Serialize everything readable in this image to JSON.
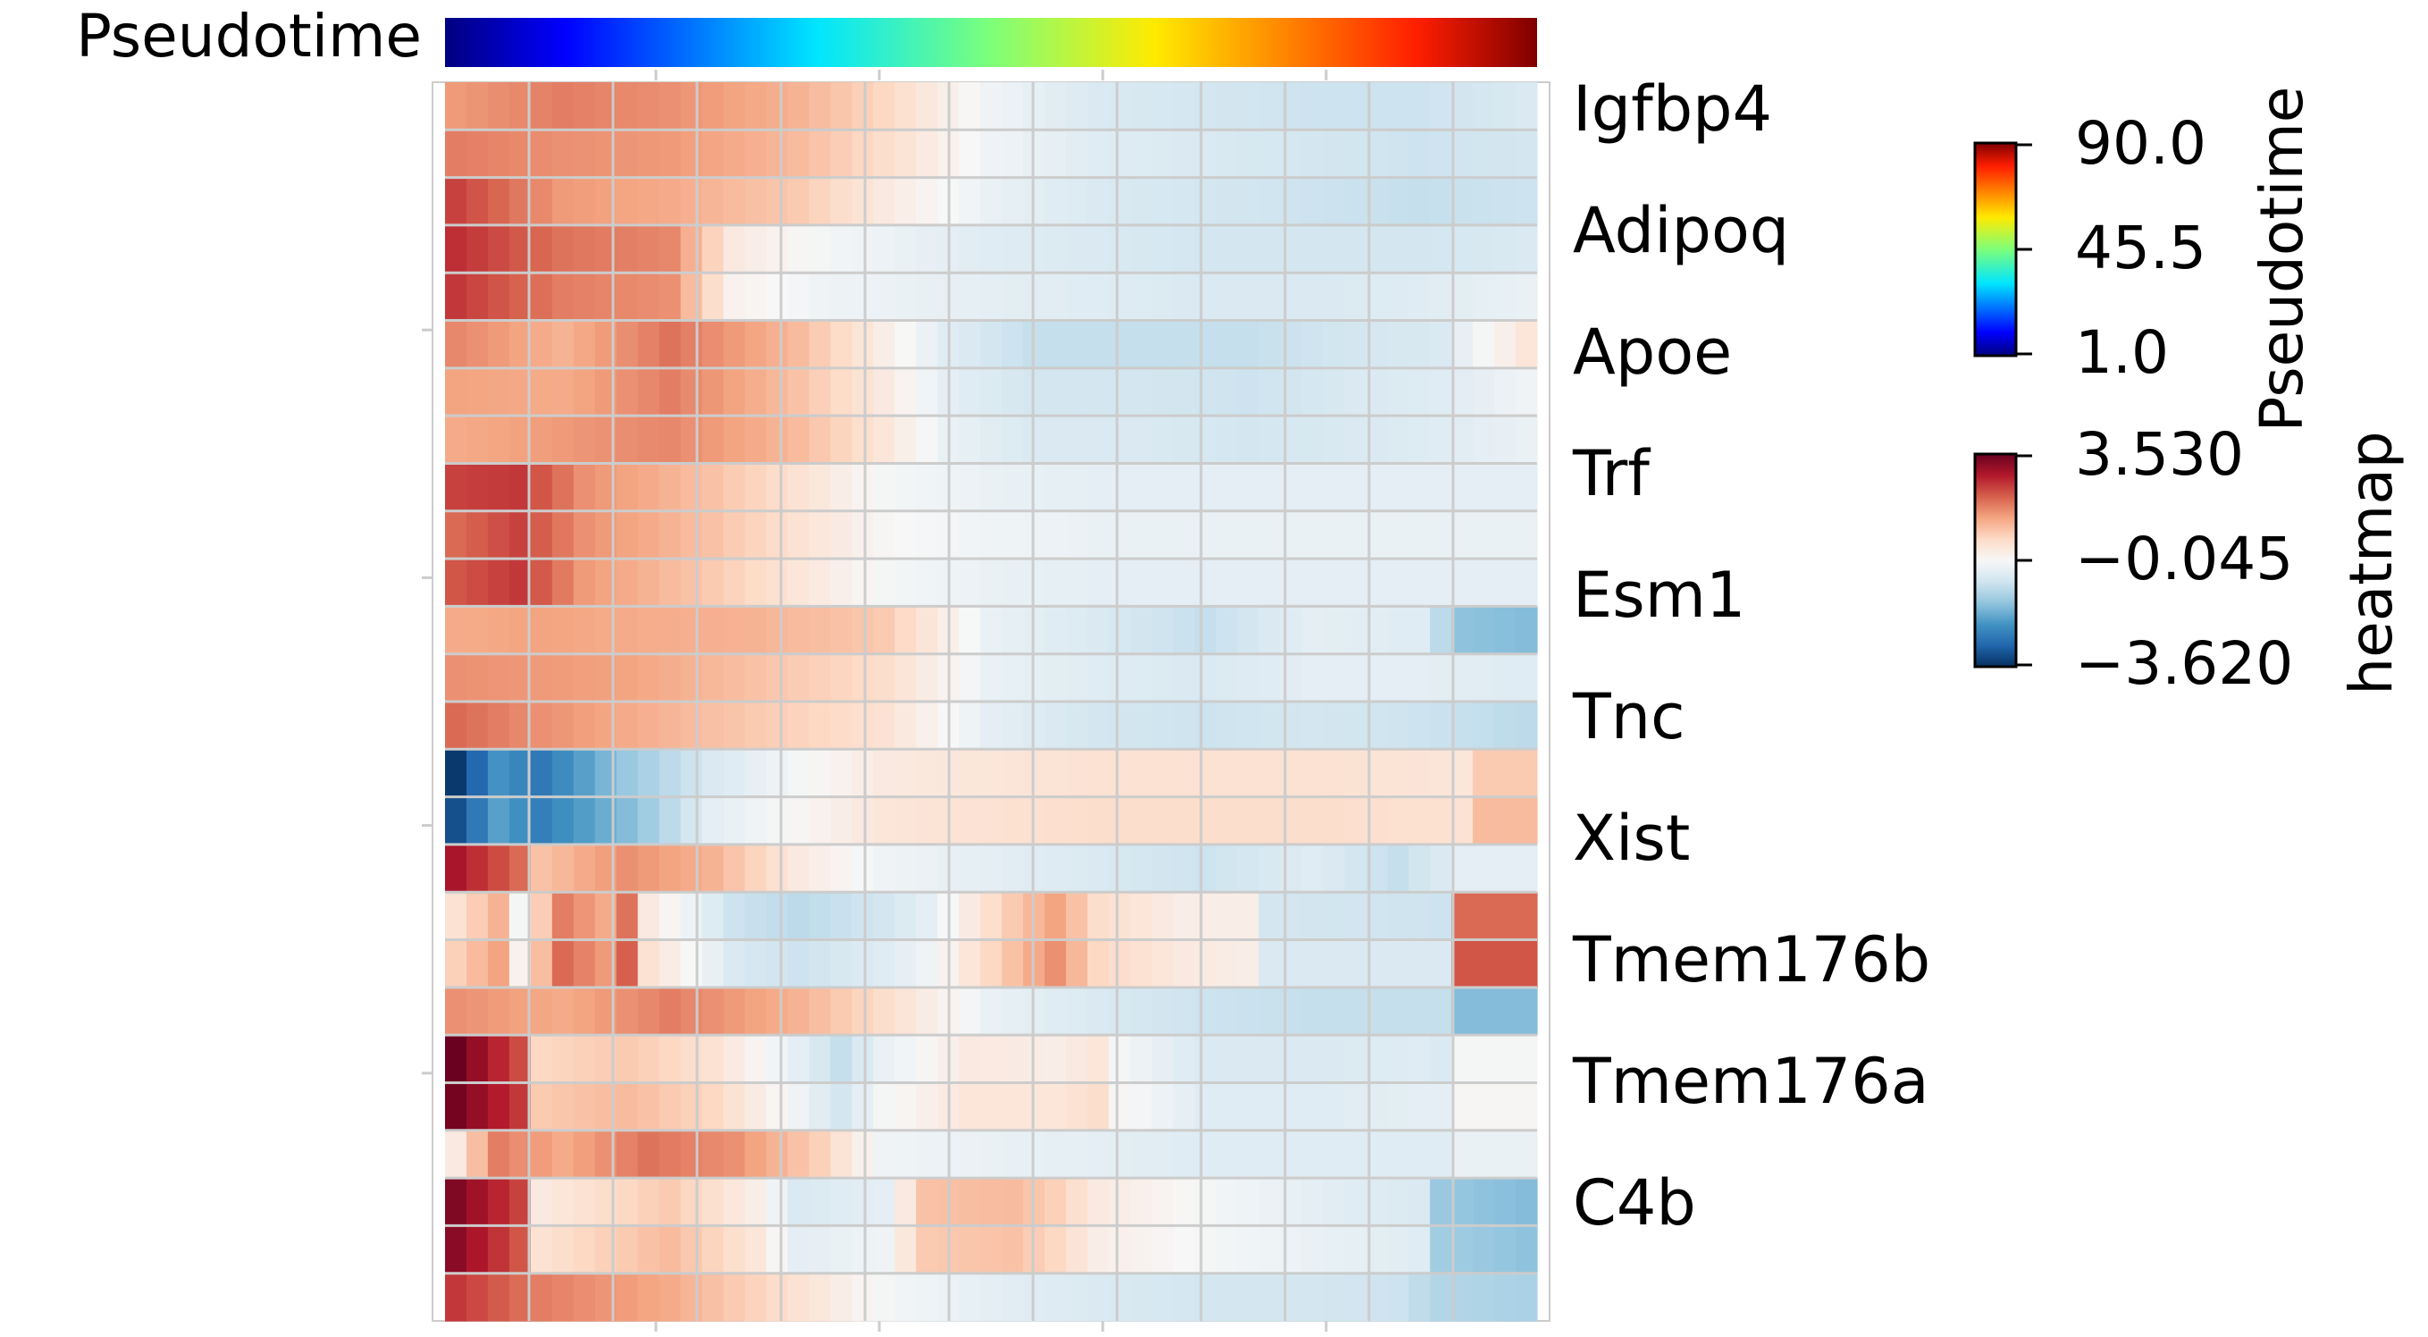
{
  "chart_data": {
    "type": "heatmap",
    "title": "",
    "xlabel": "",
    "ylabel": "",
    "annotation_bar": {
      "label": "Pseudotime",
      "colormap": "jet",
      "range": [
        1.0,
        90.0
      ]
    },
    "genes": [
      "Igfbp4",
      "Adipoq",
      "Apoe",
      "Trf",
      "Esm1",
      "Tnc",
      "Xist",
      "Tmem176b",
      "Tmem176a",
      "C4b"
    ],
    "row_count": 26,
    "column_count": 51,
    "grid": true,
    "rows_keypoints": [
      [
        [
          0,
          1.5
        ],
        [
          5,
          1.8
        ],
        [
          10,
          1.6
        ],
        [
          16,
          1.2
        ],
        [
          20,
          0.7
        ],
        [
          25,
          -0.2
        ],
        [
          30,
          -0.6
        ],
        [
          35,
          -0.7
        ],
        [
          40,
          -0.8
        ],
        [
          45,
          -0.8
        ],
        [
          50,
          -0.6
        ]
      ],
      [
        [
          0,
          1.8
        ],
        [
          5,
          1.6
        ],
        [
          10,
          1.5
        ],
        [
          16,
          1.1
        ],
        [
          20,
          0.6
        ],
        [
          25,
          -0.2
        ],
        [
          30,
          -0.5
        ],
        [
          35,
          -0.6
        ],
        [
          40,
          -0.7
        ],
        [
          45,
          -0.8
        ],
        [
          50,
          -0.7
        ]
      ],
      [
        [
          0,
          2.4
        ],
        [
          5,
          1.5
        ],
        [
          10,
          1.3
        ],
        [
          16,
          0.9
        ],
        [
          20,
          0.3
        ],
        [
          25,
          -0.3
        ],
        [
          30,
          -0.6
        ],
        [
          35,
          -0.7
        ],
        [
          40,
          -0.8
        ],
        [
          45,
          -0.9
        ],
        [
          50,
          -0.8
        ]
      ],
      [
        [
          0,
          2.6
        ],
        [
          5,
          1.9
        ],
        [
          10,
          1.7
        ],
        [
          13,
          0.3
        ],
        [
          17,
          -0.1
        ],
        [
          25,
          -0.5
        ],
        [
          30,
          -0.6
        ],
        [
          35,
          -0.7
        ],
        [
          40,
          -0.7
        ],
        [
          45,
          -0.7
        ],
        [
          50,
          -0.6
        ]
      ],
      [
        [
          0,
          2.5
        ],
        [
          5,
          1.8
        ],
        [
          10,
          1.6
        ],
        [
          13,
          0.1
        ],
        [
          17,
          -0.2
        ],
        [
          25,
          -0.4
        ],
        [
          30,
          -0.5
        ],
        [
          35,
          -0.6
        ],
        [
          40,
          -0.6
        ],
        [
          45,
          -0.5
        ],
        [
          50,
          -0.3
        ]
      ],
      [
        [
          0,
          1.7
        ],
        [
          5,
          1.2
        ],
        [
          10,
          1.9
        ],
        [
          16,
          1.1
        ],
        [
          20,
          0.2
        ],
        [
          23,
          -0.5
        ],
        [
          27,
          -0.9
        ],
        [
          32,
          -0.9
        ],
        [
          37,
          -0.9
        ],
        [
          42,
          -0.7
        ],
        [
          46,
          -0.6
        ],
        [
          50,
          0.4
        ]
      ],
      [
        [
          0,
          1.4
        ],
        [
          5,
          1.3
        ],
        [
          10,
          1.8
        ],
        [
          16,
          1.0
        ],
        [
          20,
          0.3
        ],
        [
          23,
          -0.4
        ],
        [
          27,
          -0.7
        ],
        [
          32,
          -0.7
        ],
        [
          37,
          -0.8
        ],
        [
          42,
          -0.6
        ],
        [
          46,
          -0.5
        ],
        [
          50,
          -0.2
        ]
      ],
      [
        [
          0,
          1.3
        ],
        [
          5,
          1.5
        ],
        [
          10,
          1.7
        ],
        [
          16,
          1.1
        ],
        [
          20,
          0.4
        ],
        [
          23,
          -0.3
        ],
        [
          27,
          -0.6
        ],
        [
          32,
          -0.6
        ],
        [
          37,
          -0.7
        ],
        [
          42,
          -0.6
        ],
        [
          46,
          -0.5
        ],
        [
          50,
          -0.3
        ]
      ],
      [
        [
          0,
          2.4
        ],
        [
          3,
          2.5
        ],
        [
          6,
          1.6
        ],
        [
          12,
          1.0
        ],
        [
          16,
          0.5
        ],
        [
          20,
          -0.1
        ],
        [
          25,
          -0.3
        ],
        [
          30,
          -0.4
        ],
        [
          35,
          -0.4
        ],
        [
          40,
          -0.4
        ],
        [
          45,
          -0.4
        ],
        [
          50,
          -0.4
        ]
      ],
      [
        [
          0,
          2.0
        ],
        [
          3,
          2.4
        ],
        [
          6,
          1.6
        ],
        [
          12,
          1.0
        ],
        [
          16,
          0.5
        ],
        [
          20,
          0.0
        ],
        [
          25,
          -0.2
        ],
        [
          30,
          -0.3
        ],
        [
          35,
          -0.3
        ],
        [
          40,
          -0.3
        ],
        [
          45,
          -0.3
        ],
        [
          50,
          -0.3
        ]
      ],
      [
        [
          0,
          2.2
        ],
        [
          3,
          2.5
        ],
        [
          6,
          1.5
        ],
        [
          12,
          0.9
        ],
        [
          16,
          0.4
        ],
        [
          20,
          -0.1
        ],
        [
          25,
          -0.3
        ],
        [
          30,
          -0.4
        ],
        [
          35,
          -0.4
        ],
        [
          40,
          -0.4
        ],
        [
          45,
          -0.4
        ],
        [
          50,
          -0.4
        ]
      ],
      [
        [
          0,
          1.3
        ],
        [
          4,
          1.4
        ],
        [
          8,
          1.3
        ],
        [
          14,
          1.2
        ],
        [
          20,
          0.9
        ],
        [
          25,
          -0.3
        ],
        [
          30,
          -0.6
        ],
        [
          35,
          -0.9
        ],
        [
          40,
          -0.4
        ],
        [
          45,
          -0.5
        ],
        [
          47,
          -1.5
        ],
        [
          50,
          -1.6
        ]
      ],
      [
        [
          0,
          1.6
        ],
        [
          4,
          1.5
        ],
        [
          8,
          1.4
        ],
        [
          14,
          1.0
        ],
        [
          20,
          0.6
        ],
        [
          25,
          -0.3
        ],
        [
          30,
          -0.5
        ],
        [
          35,
          -0.6
        ],
        [
          40,
          -0.4
        ],
        [
          45,
          -0.4
        ],
        [
          50,
          -0.5
        ]
      ],
      [
        [
          0,
          2.0
        ],
        [
          4,
          1.6
        ],
        [
          8,
          1.3
        ],
        [
          14,
          0.9
        ],
        [
          20,
          0.5
        ],
        [
          25,
          -0.4
        ],
        [
          30,
          -0.7
        ],
        [
          35,
          -0.8
        ],
        [
          40,
          -0.7
        ],
        [
          45,
          -0.8
        ],
        [
          50,
          -1.0
        ]
      ],
      [
        [
          0,
          -3.5
        ],
        [
          2,
          -2.2
        ],
        [
          4,
          -2.6
        ],
        [
          8,
          -1.4
        ],
        [
          12,
          -0.6
        ],
        [
          16,
          -0.1
        ],
        [
          20,
          0.3
        ],
        [
          30,
          0.5
        ],
        [
          40,
          0.5
        ],
        [
          47,
          0.4
        ],
        [
          48,
          0.9
        ],
        [
          50,
          0.9
        ]
      ],
      [
        [
          0,
          -3.2
        ],
        [
          2,
          -2.0
        ],
        [
          4,
          -2.5
        ],
        [
          8,
          -1.6
        ],
        [
          12,
          -0.4
        ],
        [
          16,
          0.0
        ],
        [
          20,
          0.4
        ],
        [
          30,
          0.6
        ],
        [
          40,
          0.6
        ],
        [
          47,
          0.5
        ],
        [
          48,
          1.1
        ],
        [
          50,
          1.1
        ]
      ],
      [
        [
          0,
          2.9
        ],
        [
          3,
          2.0
        ],
        [
          4,
          1.0
        ],
        [
          8,
          1.6
        ],
        [
          12,
          1.2
        ],
        [
          16,
          0.3
        ],
        [
          20,
          -0.2
        ],
        [
          25,
          -0.4
        ],
        [
          30,
          -0.6
        ],
        [
          35,
          -0.8
        ],
        [
          40,
          -0.5
        ],
        [
          44,
          -0.9
        ],
        [
          47,
          -0.4
        ],
        [
          50,
          -0.4
        ]
      ],
      [
        [
          0,
          0.5
        ],
        [
          2,
          1.2
        ],
        [
          3,
          -0.1
        ],
        [
          5,
          1.8
        ],
        [
          7,
          1.3
        ],
        [
          8,
          1.9
        ],
        [
          9,
          0.3
        ],
        [
          13,
          -0.8
        ],
        [
          16,
          -1.0
        ],
        [
          20,
          -0.7
        ],
        [
          22,
          -0.4
        ],
        [
          26,
          0.9
        ],
        [
          28,
          1.4
        ],
        [
          30,
          0.6
        ],
        [
          34,
          0.2
        ],
        [
          37,
          0.2
        ],
        [
          38,
          -0.7
        ],
        [
          46,
          -0.8
        ],
        [
          47,
          2.0
        ],
        [
          50,
          2.0
        ]
      ],
      [
        [
          0,
          0.8
        ],
        [
          2,
          1.4
        ],
        [
          3,
          0.1
        ],
        [
          5,
          2.0
        ],
        [
          7,
          1.5
        ],
        [
          8,
          2.1
        ],
        [
          9,
          0.5
        ],
        [
          13,
          -0.6
        ],
        [
          16,
          -0.8
        ],
        [
          20,
          -0.5
        ],
        [
          22,
          -0.2
        ],
        [
          26,
          1.0
        ],
        [
          28,
          1.6
        ],
        [
          30,
          0.7
        ],
        [
          34,
          0.3
        ],
        [
          37,
          0.2
        ],
        [
          38,
          -0.6
        ],
        [
          46,
          -0.6
        ],
        [
          47,
          2.2
        ],
        [
          50,
          2.2
        ]
      ],
      [
        [
          0,
          1.6
        ],
        [
          5,
          1.3
        ],
        [
          10,
          1.8
        ],
        [
          16,
          1.2
        ],
        [
          20,
          0.6
        ],
        [
          25,
          -0.3
        ],
        [
          30,
          -0.6
        ],
        [
          35,
          -0.8
        ],
        [
          40,
          -0.9
        ],
        [
          46,
          -0.9
        ],
        [
          47,
          -1.6
        ],
        [
          50,
          -1.6
        ]
      ],
      [
        [
          0,
          3.5
        ],
        [
          3,
          2.3
        ],
        [
          4,
          0.7
        ],
        [
          8,
          0.9
        ],
        [
          12,
          0.5
        ],
        [
          16,
          -0.4
        ],
        [
          18,
          -0.9
        ],
        [
          20,
          -0.3
        ],
        [
          24,
          0.3
        ],
        [
          28,
          0.2
        ],
        [
          30,
          0.4
        ],
        [
          31,
          -0.1
        ],
        [
          35,
          -0.6
        ],
        [
          40,
          -0.6
        ],
        [
          45,
          -0.5
        ],
        [
          46,
          -0.6
        ],
        [
          47,
          -0.1
        ],
        [
          50,
          -0.1
        ]
      ],
      [
        [
          0,
          3.4
        ],
        [
          3,
          2.5
        ],
        [
          4,
          0.9
        ],
        [
          8,
          1.1
        ],
        [
          12,
          0.7
        ],
        [
          16,
          -0.2
        ],
        [
          18,
          -0.7
        ],
        [
          20,
          -0.1
        ],
        [
          24,
          0.4
        ],
        [
          28,
          0.4
        ],
        [
          30,
          0.6
        ],
        [
          31,
          0.0
        ],
        [
          35,
          -0.5
        ],
        [
          40,
          -0.5
        ],
        [
          45,
          -0.4
        ],
        [
          46,
          -0.4
        ],
        [
          47,
          0.0
        ],
        [
          50,
          0.0
        ]
      ],
      [
        [
          0,
          0.3
        ],
        [
          2,
          1.8
        ],
        [
          5,
          1.3
        ],
        [
          9,
          1.9
        ],
        [
          13,
          1.6
        ],
        [
          17,
          0.8
        ],
        [
          20,
          -0.2
        ],
        [
          25,
          -0.3
        ],
        [
          30,
          -0.4
        ],
        [
          35,
          -0.5
        ],
        [
          40,
          -0.5
        ],
        [
          46,
          -0.5
        ],
        [
          47,
          -0.3
        ],
        [
          50,
          -0.3
        ]
      ],
      [
        [
          0,
          3.3
        ],
        [
          3,
          2.4
        ],
        [
          4,
          0.3
        ],
        [
          10,
          0.9
        ],
        [
          14,
          0.2
        ],
        [
          16,
          -0.6
        ],
        [
          20,
          -0.4
        ],
        [
          22,
          1.0
        ],
        [
          26,
          1.1
        ],
        [
          28,
          0.8
        ],
        [
          30,
          0.3
        ],
        [
          35,
          -0.1
        ],
        [
          40,
          -0.4
        ],
        [
          45,
          -0.6
        ],
        [
          46,
          -1.4
        ],
        [
          50,
          -1.6
        ]
      ],
      [
        [
          0,
          3.2
        ],
        [
          3,
          2.2
        ],
        [
          4,
          0.5
        ],
        [
          10,
          1.1
        ],
        [
          14,
          0.4
        ],
        [
          16,
          -0.4
        ],
        [
          20,
          -0.2
        ],
        [
          22,
          0.9
        ],
        [
          26,
          1.0
        ],
        [
          28,
          0.7
        ],
        [
          30,
          0.2
        ],
        [
          35,
          -0.1
        ],
        [
          40,
          -0.3
        ],
        [
          45,
          -0.5
        ],
        [
          46,
          -1.3
        ],
        [
          50,
          -1.5
        ]
      ],
      [
        [
          0,
          2.5
        ],
        [
          4,
          1.8
        ],
        [
          10,
          1.3
        ],
        [
          16,
          0.5
        ],
        [
          20,
          -0.1
        ],
        [
          25,
          -0.4
        ],
        [
          30,
          -0.6
        ],
        [
          35,
          -0.7
        ],
        [
          40,
          -0.7
        ],
        [
          44,
          -0.8
        ],
        [
          46,
          -1.1
        ],
        [
          50,
          -1.2
        ]
      ]
    ],
    "pseudotime_colorbar": {
      "label": "Pseudotime",
      "colormap": "jet",
      "range": [
        1.0,
        90.0
      ],
      "ticks": [
        "90.0",
        "45.5",
        "1.0"
      ]
    },
    "heatmap_colorbar": {
      "label": "heatmap",
      "colormap": "RdBu_r",
      "range": [
        -3.62,
        3.53
      ],
      "ticks": [
        "3.530",
        "−0.045",
        "−3.620"
      ]
    }
  }
}
